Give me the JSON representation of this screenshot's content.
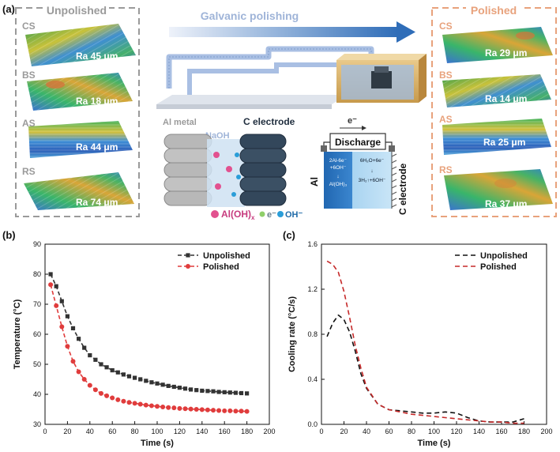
{
  "panel_a": {
    "label": "(a)",
    "unpolished_title": "Unpolished",
    "polished_title": "Polished",
    "process_title": "Galvanic polishing",
    "unpolished": [
      {
        "sample": "CS",
        "ra": "Ra 45 μm"
      },
      {
        "sample": "BS",
        "ra": "Ra 18 μm"
      },
      {
        "sample": "AS",
        "ra": "Ra 44 μm"
      },
      {
        "sample": "RS",
        "ra": "Ra 74 μm"
      }
    ],
    "polished": [
      {
        "sample": "CS",
        "ra": "Ra 29 μm"
      },
      {
        "sample": "BS",
        "ra": "Ra 14 μm"
      },
      {
        "sample": "AS",
        "ra": "Ra 25 μm"
      },
      {
        "sample": "RS",
        "ra": "Ra 37 μm"
      }
    ],
    "schematic": {
      "al_metal": "Al metal",
      "naoh": "NaOH",
      "c_electrode": "C electrode",
      "species_aloh": "Al(OH)",
      "species_aloh_sub": "x",
      "species_e": "e⁻",
      "species_oh": "OH⁻"
    },
    "circuit": {
      "e_label": "e⁻",
      "discharge": "Discharge",
      "al_side": "Al",
      "c_side": "C electrode",
      "anode_rxn": [
        "2Al-6e⁻",
        "+6OH⁻",
        "↓",
        "Al(OH)₃"
      ],
      "cathode_rxn": [
        "6H₂O+6e⁻",
        "↓",
        "3H₂↑+6OH⁻"
      ]
    }
  },
  "chart_data": [
    {
      "panel": "(b)",
      "type": "line",
      "xlabel": "Time (s)",
      "ylabel": "Temperature (°C)",
      "xlim": [
        0,
        200
      ],
      "ylim": [
        30,
        90
      ],
      "xticks": [
        0,
        20,
        40,
        60,
        80,
        100,
        120,
        140,
        160,
        180,
        200
      ],
      "yticks": [
        30,
        40,
        50,
        60,
        70,
        80,
        90
      ],
      "legend": "top-right",
      "series": [
        {
          "name": "Unpolished",
          "color": "#333333",
          "marker": "square",
          "x": [
            5,
            10,
            15,
            20,
            25,
            30,
            35,
            40,
            45,
            50,
            55,
            60,
            65,
            70,
            75,
            80,
            85,
            90,
            95,
            100,
            105,
            110,
            115,
            120,
            125,
            130,
            135,
            140,
            145,
            150,
            155,
            160,
            165,
            170,
            175,
            180
          ],
          "y": [
            80,
            76,
            71,
            66,
            62,
            58.5,
            55.5,
            53,
            51.5,
            50,
            49,
            48,
            47.3,
            46.6,
            46,
            45.5,
            45,
            44.5,
            44,
            43.6,
            43.2,
            42.8,
            42.5,
            42.2,
            41.9,
            41.6,
            41.4,
            41.2,
            41.1,
            41,
            40.8,
            40.7,
            40.6,
            40.5,
            40.4,
            40.3
          ]
        },
        {
          "name": "Polished",
          "color": "#e03c3c",
          "marker": "circle",
          "x": [
            5,
            10,
            15,
            20,
            25,
            30,
            35,
            40,
            45,
            50,
            55,
            60,
            65,
            70,
            75,
            80,
            85,
            90,
            95,
            100,
            105,
            110,
            115,
            120,
            125,
            130,
            135,
            140,
            145,
            150,
            155,
            160,
            165,
            170,
            175,
            180
          ],
          "y": [
            76.5,
            69.5,
            62.5,
            56,
            51,
            47.5,
            45,
            43,
            41.5,
            40.3,
            39.5,
            38.8,
            38.2,
            37.7,
            37.3,
            37,
            36.7,
            36.4,
            36.2,
            36,
            35.8,
            35.6,
            35.5,
            35.3,
            35.2,
            35.1,
            35,
            34.9,
            34.8,
            34.7,
            34.6,
            34.5,
            34.5,
            34.4,
            34.4,
            34.3
          ]
        }
      ]
    },
    {
      "panel": "(c)",
      "type": "line",
      "xlabel": "Time (s)",
      "ylabel": "Cooling rate (°C/s)",
      "xlim": [
        0,
        200
      ],
      "ylim": [
        0,
        1.6
      ],
      "xticks": [
        0,
        20,
        40,
        60,
        80,
        100,
        120,
        140,
        160,
        180,
        200
      ],
      "yticks": [
        0.0,
        0.4,
        0.8,
        1.2,
        1.6
      ],
      "legend": "top-right",
      "series": [
        {
          "name": "Unpolished",
          "color": "#111111",
          "dash": "6,4",
          "x": [
            5,
            10,
            15,
            20,
            25,
            30,
            35,
            40,
            50,
            60,
            70,
            80,
            90,
            100,
            110,
            120,
            130,
            140,
            150,
            160,
            170,
            180
          ],
          "y": [
            0.78,
            0.9,
            0.97,
            0.93,
            0.82,
            0.65,
            0.45,
            0.32,
            0.18,
            0.13,
            0.12,
            0.11,
            0.1,
            0.1,
            0.11,
            0.1,
            0.06,
            0.03,
            0.02,
            0.02,
            0.02,
            0.05
          ]
        },
        {
          "name": "Polished",
          "color": "#c62a2a",
          "dash": "6,4",
          "x": [
            5,
            10,
            15,
            20,
            25,
            30,
            35,
            40,
            50,
            60,
            70,
            80,
            90,
            100,
            110,
            120,
            130,
            140,
            150,
            160,
            170,
            180
          ],
          "y": [
            1.45,
            1.42,
            1.35,
            1.18,
            0.95,
            0.7,
            0.5,
            0.33,
            0.18,
            0.13,
            0.11,
            0.09,
            0.08,
            0.07,
            0.06,
            0.05,
            0.04,
            0.03,
            0.02,
            0.02,
            0.01,
            0.01
          ]
        }
      ]
    }
  ],
  "colors": {
    "unpolished_box": "#9a9a9a",
    "polished_box": "#e8a27c",
    "polished_title": "#e8a27c",
    "arrow_start": "#e6ecf7",
    "arrow_end": "#2f6db8"
  }
}
